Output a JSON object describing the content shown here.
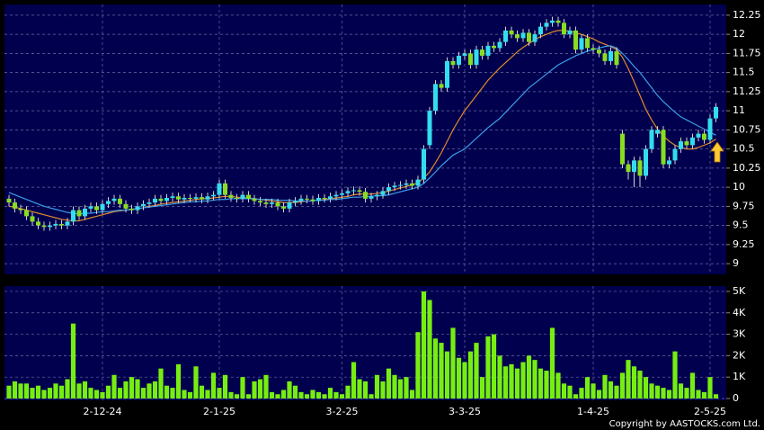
{
  "chart_data": [
    {
      "type": "candlestick",
      "categories": [
        null,
        null,
        null,
        null,
        null,
        null,
        null,
        null,
        null,
        null,
        null,
        null,
        null,
        null,
        null,
        null,
        "2-12-24",
        null,
        null,
        null,
        null,
        null,
        null,
        null,
        null,
        null,
        null,
        null,
        null,
        null,
        null,
        null,
        null,
        null,
        null,
        null,
        "2-1-25",
        null,
        null,
        null,
        null,
        null,
        null,
        null,
        null,
        null,
        null,
        null,
        null,
        null,
        null,
        null,
        null,
        null,
        null,
        null,
        null,
        "3-2-25",
        null,
        null,
        null,
        null,
        null,
        null,
        null,
        null,
        null,
        null,
        null,
        null,
        null,
        null,
        null,
        null,
        null,
        null,
        null,
        null,
        "3-3-25",
        null,
        null,
        null,
        null,
        null,
        null,
        null,
        null,
        null,
        null,
        null,
        null,
        null,
        null,
        null,
        null,
        null,
        null,
        null,
        null,
        null,
        "1-4-25",
        null,
        null,
        null,
        null,
        null,
        null,
        null,
        null,
        null,
        null,
        null,
        null,
        null,
        null,
        null,
        null,
        null,
        null,
        null,
        "2-5-25",
        null
      ],
      "open": [
        9.85,
        9.8,
        9.72,
        9.7,
        9.62,
        9.55,
        9.5,
        9.48,
        9.5,
        9.52,
        9.5,
        9.55,
        9.7,
        9.62,
        9.72,
        9.75,
        9.7,
        9.78,
        9.82,
        9.85,
        9.78,
        9.72,
        9.7,
        9.75,
        9.78,
        9.8,
        9.85,
        9.82,
        9.86,
        9.88,
        9.84,
        9.86,
        9.85,
        9.87,
        9.84,
        9.88,
        9.9,
        10.05,
        9.9,
        9.86,
        9.85,
        9.9,
        9.85,
        9.82,
        9.8,
        9.78,
        9.8,
        9.75,
        9.72,
        9.8,
        9.82,
        9.85,
        9.84,
        9.82,
        9.86,
        9.85,
        9.88,
        9.9,
        9.92,
        9.95,
        9.96,
        9.94,
        9.85,
        9.88,
        9.9,
        9.95,
        10,
        10.02,
        10.03,
        10.05,
        10.02,
        10.1,
        10.55,
        11,
        11.35,
        11.3,
        11.65,
        11.6,
        11.72,
        11.75,
        11.6,
        11.8,
        11.72,
        11.85,
        11.82,
        11.9,
        12.05,
        12,
        11.95,
        12.02,
        11.9,
        12,
        12.1,
        12.15,
        12.18,
        12.15,
        12,
        12.05,
        11.8,
        11.95,
        11.82,
        11.8,
        11.75,
        11.65,
        11.78,
        10.7,
        10.3,
        10.2,
        10.35,
        10.15,
        10.5,
        10.7,
        10.75,
        10.3,
        10.35,
        10.5,
        10.6,
        10.55,
        10.65,
        10.7,
        10.62,
        10.9
      ],
      "high": [
        9.9,
        9.85,
        9.77,
        9.75,
        9.67,
        9.6,
        9.55,
        9.55,
        9.57,
        9.57,
        9.6,
        9.75,
        9.75,
        9.77,
        9.8,
        9.8,
        9.83,
        9.87,
        9.9,
        9.9,
        9.83,
        9.77,
        9.8,
        9.83,
        9.85,
        9.9,
        9.9,
        9.91,
        9.93,
        9.93,
        9.91,
        9.91,
        9.92,
        9.92,
        9.93,
        9.95,
        10.1,
        10.1,
        9.95,
        9.91,
        9.95,
        9.95,
        9.9,
        9.87,
        9.85,
        9.85,
        9.85,
        9.8,
        9.85,
        9.87,
        9.9,
        9.9,
        9.89,
        9.91,
        9.91,
        9.93,
        9.95,
        9.97,
        10,
        10.01,
        10.01,
        9.99,
        9.93,
        9.95,
        10,
        10.05,
        10.07,
        10.08,
        10.1,
        10.1,
        10.15,
        10.55,
        11.05,
        11.4,
        11.4,
        11.7,
        11.7,
        11.77,
        11.8,
        11.8,
        11.85,
        11.85,
        11.9,
        11.9,
        11.95,
        12.1,
        12.1,
        12.05,
        12.07,
        12.07,
        12.05,
        12.15,
        12.2,
        12.23,
        12.23,
        12.2,
        12.1,
        12.1,
        12,
        12,
        11.87,
        11.85,
        11.8,
        11.83,
        11.83,
        10.75,
        10.35,
        10.4,
        10.4,
        10.55,
        10.8,
        10.8,
        10.8,
        10.4,
        10.55,
        10.65,
        10.65,
        10.7,
        10.75,
        10.75,
        10.95,
        11.1
      ],
      "low": [
        9.75,
        9.67,
        9.65,
        9.57,
        9.5,
        9.45,
        9.43,
        9.43,
        9.45,
        9.45,
        9.45,
        9.5,
        9.57,
        9.57,
        9.67,
        9.65,
        9.65,
        9.73,
        9.77,
        9.73,
        9.67,
        9.65,
        9.65,
        9.7,
        9.73,
        9.75,
        9.77,
        9.77,
        9.81,
        9.79,
        9.79,
        9.8,
        9.8,
        9.79,
        9.79,
        9.83,
        9.85,
        9.85,
        9.81,
        9.8,
        9.8,
        9.8,
        9.77,
        9.75,
        9.73,
        9.73,
        9.7,
        9.67,
        9.67,
        9.75,
        9.77,
        9.79,
        9.77,
        9.77,
        9.8,
        9.8,
        9.83,
        9.85,
        9.87,
        9.9,
        9.89,
        9.8,
        9.8,
        9.83,
        9.85,
        9.9,
        9.95,
        9.97,
        9.98,
        9.97,
        9.97,
        10.05,
        10.5,
        10.95,
        11.25,
        11.25,
        11.55,
        11.55,
        11.67,
        11.55,
        11.55,
        11.67,
        11.67,
        11.77,
        11.77,
        11.85,
        11.95,
        11.9,
        11.9,
        11.85,
        11.85,
        11.95,
        12.05,
        12.1,
        12.1,
        11.95,
        11.95,
        11.75,
        11.75,
        11.77,
        11.75,
        11.7,
        11.6,
        11.6,
        11.55,
        10.25,
        10.1,
        10,
        10,
        10.1,
        10.45,
        10.65,
        10.25,
        10.25,
        10.3,
        10.45,
        10.5,
        10.5,
        10.6,
        10.57,
        10.57,
        10.85
      ],
      "close": [
        9.8,
        9.72,
        9.7,
        9.62,
        9.55,
        9.5,
        9.48,
        9.5,
        9.52,
        9.5,
        9.55,
        9.7,
        9.62,
        9.72,
        9.75,
        9.7,
        9.78,
        9.82,
        9.85,
        9.78,
        9.72,
        9.7,
        9.75,
        9.78,
        9.8,
        9.85,
        9.82,
        9.86,
        9.88,
        9.84,
        9.86,
        9.85,
        9.87,
        9.84,
        9.88,
        9.9,
        10.05,
        9.9,
        9.86,
        9.85,
        9.9,
        9.85,
        9.82,
        9.8,
        9.78,
        9.8,
        9.75,
        9.72,
        9.8,
        9.82,
        9.85,
        9.84,
        9.82,
        9.86,
        9.85,
        9.88,
        9.9,
        9.92,
        9.95,
        9.96,
        9.94,
        9.85,
        9.88,
        9.9,
        9.95,
        10,
        10.02,
        10.03,
        10.05,
        10.02,
        10.1,
        10.5,
        11,
        11.35,
        11.3,
        11.65,
        11.6,
        11.72,
        11.75,
        11.6,
        11.8,
        11.72,
        11.85,
        11.82,
        11.9,
        12.05,
        12,
        11.95,
        12.02,
        11.9,
        12,
        12.1,
        12.15,
        12.18,
        12.15,
        12,
        12.05,
        11.8,
        11.95,
        11.82,
        11.8,
        11.75,
        11.65,
        11.78,
        11.6,
        10.3,
        10.2,
        10.35,
        10.15,
        10.5,
        10.75,
        10.75,
        10.3,
        10.35,
        10.5,
        10.6,
        10.55,
        10.65,
        10.7,
        10.62,
        10.9,
        11.05
      ],
      "up_color": "#33ddee",
      "down_color": "#88dd22",
      "wick_color": "#d0d0d0",
      "series": [
        {
          "color": "#e08a2a",
          "values": [
            9.75,
            9.74,
            9.72,
            9.7,
            9.68,
            9.66,
            9.64,
            9.62,
            9.6,
            9.58,
            9.57,
            9.56,
            9.56,
            9.58,
            9.6,
            9.62,
            9.64,
            9.66,
            9.68,
            9.69,
            9.7,
            9.71,
            9.72,
            9.73,
            9.75,
            9.76,
            9.78,
            9.79,
            9.8,
            9.81,
            9.82,
            9.83,
            9.84,
            9.85,
            9.85,
            9.86,
            9.87,
            9.88,
            9.88,
            9.87,
            9.86,
            9.86,
            9.85,
            9.84,
            9.83,
            9.82,
            9.81,
            9.8,
            9.8,
            9.8,
            9.81,
            9.82,
            9.82,
            9.83,
            9.84,
            9.85,
            9.86,
            9.87,
            9.88,
            9.9,
            9.91,
            9.91,
            9.91,
            9.92,
            9.93,
            9.95,
            9.97,
            9.99,
            10.01,
            10.03,
            10.06,
            10.12,
            10.2,
            10.32,
            10.45,
            10.6,
            10.75,
            10.88,
            11,
            11.1,
            11.2,
            11.3,
            11.4,
            11.48,
            11.56,
            11.63,
            11.7,
            11.77,
            11.83,
            11.88,
            11.93,
            11.97,
            12,
            12.03,
            12.05,
            12.05,
            12.04,
            12.02,
            12,
            11.97,
            11.94,
            11.9,
            11.87,
            11.84,
            11.8,
            11.7,
            11.55,
            11.38,
            11.2,
            11.02,
            10.88,
            10.76,
            10.67,
            10.6,
            10.55,
            10.52,
            10.5,
            10.5,
            10.52,
            10.55,
            10.58,
            10.63
          ]
        },
        {
          "color": "#3a9ee8",
          "values": [
            9.93,
            9.9,
            9.87,
            9.84,
            9.81,
            9.78,
            9.75,
            9.73,
            9.71,
            9.69,
            9.67,
            9.66,
            9.65,
            9.66,
            9.66,
            9.67,
            9.68,
            9.68,
            9.69,
            9.7,
            9.7,
            9.71,
            9.72,
            9.73,
            9.74,
            9.75,
            9.76,
            9.77,
            9.78,
            9.79,
            9.8,
            9.81,
            9.81,
            9.82,
            9.82,
            9.83,
            9.84,
            9.84,
            9.85,
            9.85,
            9.85,
            9.85,
            9.85,
            9.84,
            9.84,
            9.84,
            9.83,
            9.83,
            9.83,
            9.82,
            9.82,
            9.82,
            9.82,
            9.83,
            9.83,
            9.84,
            9.84,
            9.85,
            9.86,
            9.87,
            9.87,
            9.88,
            9.88,
            9.89,
            9.89,
            9.9,
            9.92,
            9.94,
            9.96,
            9.98,
            10,
            10.05,
            10.12,
            10.2,
            10.28,
            10.35,
            10.42,
            10.46,
            10.5,
            10.57,
            10.64,
            10.71,
            10.78,
            10.84,
            10.9,
            10.98,
            11.06,
            11.14,
            11.22,
            11.3,
            11.36,
            11.42,
            11.48,
            11.54,
            11.6,
            11.64,
            11.68,
            11.72,
            11.75,
            11.78,
            11.8,
            11.82,
            11.84,
            11.85,
            11.82,
            11.75,
            11.67,
            11.58,
            11.5,
            11.4,
            11.3,
            11.2,
            11.12,
            11.05,
            10.98,
            10.92,
            10.88,
            10.84,
            10.8,
            10.76,
            10.72,
            10.68
          ]
        }
      ],
      "ylim": [
        8.86,
        12.39
      ],
      "yticks": [
        9,
        9.25,
        9.5,
        9.75,
        10,
        10.25,
        10.5,
        10.75,
        11,
        11.25,
        11.5,
        11.75,
        12,
        12.25
      ],
      "grid": true
    },
    {
      "type": "bar",
      "values": [
        600,
        800,
        700,
        700,
        500,
        600,
        400,
        500,
        700,
        600,
        900,
        3500,
        700,
        800,
        500,
        400,
        300,
        600,
        1100,
        500,
        800,
        1000,
        900,
        500,
        700,
        800,
        1400,
        600,
        500,
        1600,
        400,
        300,
        1500,
        600,
        400,
        1200,
        500,
        1100,
        300,
        200,
        1000,
        200,
        800,
        900,
        1100,
        300,
        200,
        400,
        800,
        600,
        300,
        200,
        400,
        300,
        200,
        500,
        300,
        200,
        600,
        1700,
        900,
        800,
        200,
        1100,
        800,
        1400,
        1100,
        900,
        1000,
        400,
        3100,
        5000,
        4600,
        2800,
        2600,
        2200,
        3300,
        1900,
        1700,
        2200,
        2600,
        1000,
        2900,
        3000,
        2000,
        1500,
        1600,
        1400,
        1700,
        2000,
        1800,
        1400,
        1300,
        3300,
        1200,
        700,
        600,
        200,
        500,
        1000,
        700,
        400,
        1100,
        800,
        600,
        1200,
        1800,
        1500,
        1300,
        1000,
        700,
        600,
        500,
        400,
        2200,
        700,
        500,
        1200,
        400,
        300,
        1000,
        200
      ],
      "color": "#77ee11",
      "ylim": [
        0,
        5250
      ],
      "yticks": [
        0,
        {
          "value": 1000,
          "label": "1K"
        },
        {
          "value": 2000,
          "label": "2K"
        },
        {
          "value": 3000,
          "label": "3K"
        },
        {
          "value": 4000,
          "label": "4K"
        },
        {
          "value": 5000,
          "label": "5K"
        }
      ],
      "grid": true
    }
  ],
  "copyright": "Copyright by AASTOCKS.com Ltd."
}
